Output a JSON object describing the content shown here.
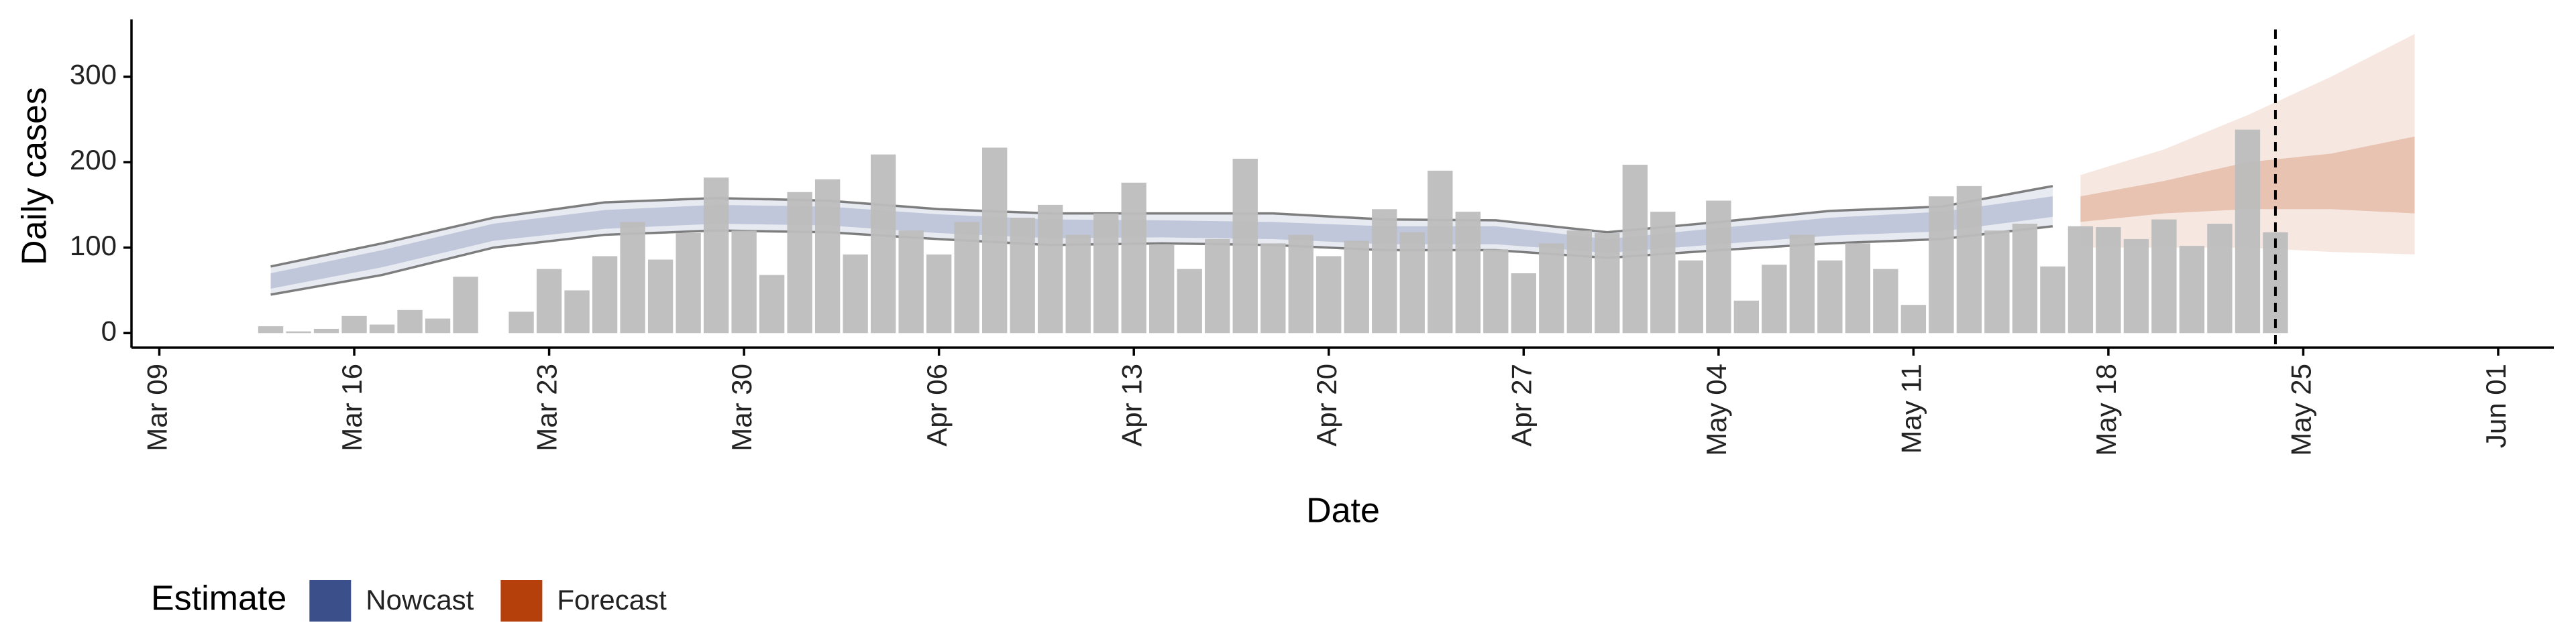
{
  "chart_data": {
    "type": "bar",
    "y_label": "Daily cases",
    "x_label": "Date",
    "color": "#bdbdbd",
    "x": [
      "Mar 13",
      "Mar 14",
      "Mar 15",
      "Mar 16",
      "Mar 17",
      "Mar 18",
      "Mar 19",
      "Mar 20",
      "Mar 21",
      "Mar 22",
      "Mar 23",
      "Mar 24",
      "Mar 25",
      "Mar 26",
      "Mar 27",
      "Mar 28",
      "Mar 29",
      "Mar 30",
      "Mar 31",
      "Apr 01",
      "Apr 02",
      "Apr 03",
      "Apr 04",
      "Apr 05",
      "Apr 06",
      "Apr 07",
      "Apr 08",
      "Apr 09",
      "Apr 10",
      "Apr 11",
      "Apr 12",
      "Apr 13",
      "Apr 14",
      "Apr 15",
      "Apr 16",
      "Apr 17",
      "Apr 18",
      "Apr 19",
      "Apr 20",
      "Apr 21",
      "Apr 22",
      "Apr 23",
      "Apr 24",
      "Apr 25",
      "Apr 26",
      "Apr 27",
      "Apr 28",
      "Apr 29",
      "Apr 30",
      "May 01",
      "May 02",
      "May 03",
      "May 04",
      "May 05",
      "May 06",
      "May 07",
      "May 08",
      "May 09",
      "May 10",
      "May 11",
      "May 12",
      "May 13",
      "May 14",
      "May 15",
      "May 16",
      "May 17",
      "May 18",
      "May 19",
      "May 20",
      "May 21",
      "May 22",
      "May 23",
      "May 24"
    ],
    "values": [
      8,
      2,
      5,
      20,
      10,
      27,
      17,
      66,
      0,
      25,
      75,
      50,
      90,
      130,
      86,
      117,
      182,
      120,
      68,
      165,
      180,
      92,
      209,
      120,
      92,
      130,
      217,
      135,
      150,
      115,
      140,
      176,
      103,
      75,
      110,
      204,
      105,
      115,
      90,
      108,
      145,
      118,
      190,
      142,
      98,
      70,
      105,
      120,
      117,
      197,
      142,
      85,
      155,
      38,
      80,
      115,
      85,
      105,
      75,
      33,
      160,
      172,
      120,
      128,
      78,
      125,
      124,
      110,
      133,
      102,
      128,
      238,
      118
    ],
    "xlim": [
      "Mar 08",
      "Jun 03"
    ],
    "xticks": [
      "Mar 09",
      "Mar 16",
      "Mar 23",
      "Mar 30",
      "Apr 06",
      "Apr 13",
      "Apr 20",
      "Apr 27",
      "May 04",
      "May 11",
      "May 18",
      "May 25",
      "Jun 01"
    ],
    "ylim": [
      -17,
      367
    ],
    "yticks": [
      0,
      100,
      200,
      300
    ],
    "vline": "May 24",
    "legend_title": "Estimate",
    "legend_position": "bottom-left",
    "estimates": [
      {
        "name": "Nowcast",
        "color": "#3b4f8a",
        "outline": true,
        "x": [
          "Mar 13",
          "Mar 17",
          "Mar 21",
          "Mar 25",
          "Mar 29",
          "Apr 02",
          "Apr 06",
          "Apr 10",
          "Apr 14",
          "Apr 18",
          "Apr 22",
          "Apr 26",
          "Apr 30",
          "May 04",
          "May 08",
          "May 12",
          "May 16"
        ],
        "lower90": [
          45,
          68,
          100,
          115,
          120,
          118,
          110,
          103,
          105,
          103,
          97,
          97,
          88,
          97,
          105,
          110,
          125
        ],
        "upper90": [
          78,
          105,
          135,
          153,
          158,
          155,
          145,
          140,
          140,
          140,
          133,
          132,
          118,
          130,
          143,
          148,
          172
        ],
        "lower50": [
          52,
          77,
          108,
          122,
          128,
          126,
          117,
          111,
          112,
          110,
          104,
          104,
          94,
          104,
          114,
          119,
          136
        ],
        "upper50": [
          70,
          97,
          128,
          144,
          150,
          148,
          139,
          133,
          132,
          130,
          125,
          125,
          110,
          123,
          135,
          142,
          160
        ]
      },
      {
        "name": "Forecast",
        "color": "#b5400c",
        "outline": false,
        "x": [
          "May 17",
          "May 20",
          "May 23",
          "May 26",
          "May 29"
        ],
        "lower90": [
          100,
          100,
          100,
          95,
          92
        ],
        "upper90": [
          185,
          215,
          255,
          300,
          350
        ],
        "lower50": [
          130,
          140,
          145,
          145,
          140
        ],
        "upper50": [
          160,
          178,
          200,
          210,
          230
        ]
      }
    ]
  }
}
